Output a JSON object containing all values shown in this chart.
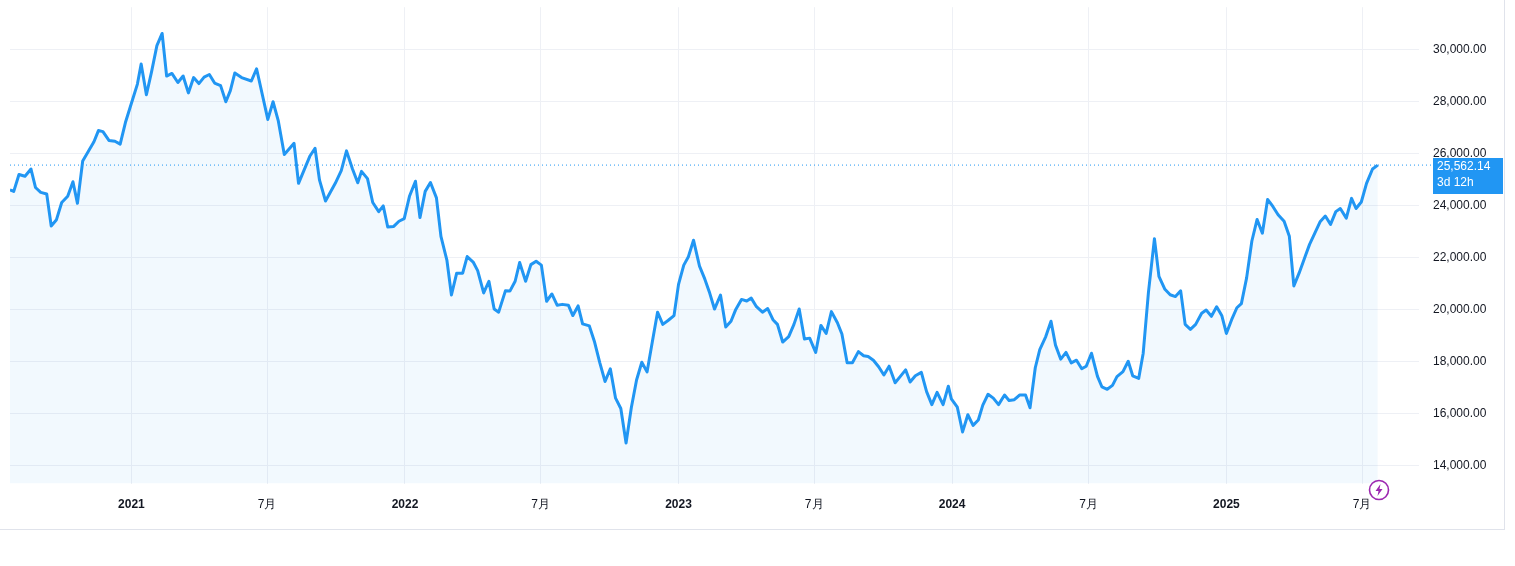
{
  "chart_data": {
    "type": "area",
    "x": [
      "2020-07-23",
      "2020-07-28",
      "2020-08-04",
      "2020-08-12",
      "2020-08-20",
      "2020-08-26",
      "2020-09-02",
      "2020-09-10",
      "2020-09-16",
      "2020-09-23",
      "2020-09-30",
      "2020-10-08",
      "2020-10-15",
      "2020-10-21",
      "2020-10-28",
      "2020-11-05",
      "2020-11-12",
      "2020-11-18",
      "2020-11-24",
      "2020-12-02",
      "2020-12-10",
      "2020-12-17",
      "2020-12-24",
      "2021-01-01",
      "2021-01-09",
      "2021-01-14",
      "2021-01-21",
      "2021-01-28",
      "2021-02-04",
      "2021-02-11",
      "2021-02-17",
      "2021-02-24",
      "2021-03-04",
      "2021-03-11",
      "2021-03-18",
      "2021-03-25",
      "2021-04-01",
      "2021-04-08",
      "2021-04-15",
      "2021-04-22",
      "2021-04-30",
      "2021-05-07",
      "2021-05-13",
      "2021-05-19",
      "2021-05-28",
      "2021-06-10",
      "2021-06-17",
      "2021-07-02",
      "2021-07-09",
      "2021-07-16",
      "2021-07-24",
      "2021-08-06",
      "2021-08-12",
      "2021-08-27",
      "2021-09-03",
      "2021-09-09",
      "2021-09-17",
      "2021-09-30",
      "2021-10-08",
      "2021-10-15",
      "2021-10-23",
      "2021-10-30",
      "2021-11-04",
      "2021-11-12",
      "2021-11-19",
      "2021-11-27",
      "2021-12-03",
      "2021-12-09",
      "2021-12-17",
      "2021-12-24",
      "2021-12-31",
      "2022-01-07",
      "2022-01-15",
      "2022-01-21",
      "2022-01-28",
      "2022-02-04",
      "2022-02-12",
      "2022-02-18",
      "2022-02-26",
      "2022-03-04",
      "2022-03-11",
      "2022-03-19",
      "2022-03-25",
      "2022-04-02",
      "2022-04-08",
      "2022-04-16",
      "2022-04-23",
      "2022-04-30",
      "2022-05-06",
      "2022-05-15",
      "2022-05-21",
      "2022-05-28",
      "2022-06-03",
      "2022-06-11",
      "2022-06-18",
      "2022-06-25",
      "2022-07-02",
      "2022-07-09",
      "2022-07-16",
      "2022-07-23",
      "2022-07-30",
      "2022-08-07",
      "2022-08-13",
      "2022-08-20",
      "2022-08-26",
      "2022-09-04",
      "2022-09-11",
      "2022-09-18",
      "2022-09-25",
      "2022-10-02",
      "2022-10-09",
      "2022-10-16",
      "2022-10-23",
      "2022-10-30",
      "2022-11-06",
      "2022-11-13",
      "2022-11-20",
      "2022-11-27",
      "2022-12-04",
      "2022-12-11",
      "2022-12-18",
      "2022-12-26",
      "2023-01-01",
      "2023-01-08",
      "2023-01-14",
      "2023-01-21",
      "2023-01-29",
      "2023-02-05",
      "2023-02-11",
      "2023-02-18",
      "2023-02-26",
      "2023-03-05",
      "2023-03-12",
      "2023-03-18",
      "2023-03-26",
      "2023-04-02",
      "2023-04-08",
      "2023-04-15",
      "2023-04-23",
      "2023-04-30",
      "2023-05-07",
      "2023-05-13",
      "2023-05-20",
      "2023-05-28",
      "2023-06-04",
      "2023-06-11",
      "2023-06-18",
      "2023-06-25",
      "2023-07-03",
      "2023-07-10",
      "2023-07-17",
      "2023-07-24",
      "2023-08-01",
      "2023-08-07",
      "2023-08-14",
      "2023-08-21",
      "2023-08-29",
      "2023-09-05",
      "2023-09-11",
      "2023-09-18",
      "2023-09-25",
      "2023-10-02",
      "2023-10-09",
      "2023-10-17",
      "2023-10-24",
      "2023-10-31",
      "2023-11-06",
      "2023-11-13",
      "2023-11-21",
      "2023-11-28",
      "2023-12-05",
      "2023-12-12",
      "2023-12-20",
      "2023-12-27",
      "2023-12-31",
      "2024-01-08",
      "2024-01-15",
      "2024-01-22",
      "2024-01-29",
      "2024-02-05",
      "2024-02-11",
      "2024-02-18",
      "2024-02-25",
      "2024-03-03",
      "2024-03-11",
      "2024-03-17",
      "2024-03-24",
      "2024-03-31",
      "2024-04-08",
      "2024-04-14",
      "2024-04-21",
      "2024-04-27",
      "2024-05-05",
      "2024-05-12",
      "2024-05-18",
      "2024-05-25",
      "2024-06-01",
      "2024-06-08",
      "2024-06-15",
      "2024-06-22",
      "2024-06-28",
      "2024-07-05",
      "2024-07-13",
      "2024-07-19",
      "2024-07-26",
      "2024-08-02",
      "2024-08-08",
      "2024-08-16",
      "2024-08-23",
      "2024-08-29",
      "2024-09-06",
      "2024-09-12",
      "2024-09-19",
      "2024-09-27",
      "2024-10-03",
      "2024-10-11",
      "2024-10-18",
      "2024-10-25",
      "2024-11-01",
      "2024-11-07",
      "2024-11-14",
      "2024-11-21",
      "2024-11-29",
      "2024-12-05",
      "2024-12-12",
      "2024-12-19",
      "2024-12-26",
      "2025-01-01",
      "2025-01-08",
      "2025-01-15",
      "2025-01-21",
      "2025-01-28",
      "2025-02-04",
      "2025-02-11",
      "2025-02-18",
      "2025-02-25",
      "2025-03-04",
      "2025-03-11",
      "2025-03-19",
      "2025-03-26",
      "2025-04-01",
      "2025-04-08",
      "2025-04-15",
      "2025-04-22",
      "2025-04-29",
      "2025-05-06",
      "2025-05-13",
      "2025-05-20",
      "2025-05-27",
      "2025-06-02",
      "2025-06-10",
      "2025-06-17",
      "2025-06-23",
      "2025-06-30",
      "2025-07-07",
      "2025-07-15",
      "2025-07-22"
    ],
    "series": [
      {
        "color": "#2196f3",
        "values": [
          24610,
          24550,
          25200,
          25130,
          25410,
          24700,
          24510,
          24450,
          23220,
          23460,
          24120,
          24360,
          24920,
          24090,
          25720,
          26110,
          26460,
          26890,
          26850,
          26510,
          26480,
          26370,
          27200,
          27940,
          28680,
          29450,
          28270,
          29170,
          30160,
          30630,
          28990,
          29090,
          28740,
          28990,
          28340,
          28930,
          28700,
          28950,
          29050,
          28720,
          28620,
          28000,
          28430,
          29110,
          28930,
          28800,
          29270,
          27320,
          28000,
          27260,
          25970,
          26400,
          24860,
          25900,
          26210,
          24980,
          24180,
          24860,
          25350,
          26110,
          25410,
          24880,
          25320,
          25040,
          24120,
          23770,
          23990,
          23180,
          23200,
          23400,
          23500,
          24360,
          24940,
          23540,
          24550,
          24890,
          24300,
          22820,
          21890,
          20560,
          21400,
          21400,
          22040,
          21830,
          21500,
          20640,
          21090,
          20020,
          19900,
          20720,
          20710,
          21090,
          21810,
          21090,
          21730,
          21860,
          21710,
          20320,
          20600,
          20170,
          20200,
          20170,
          19770,
          20140,
          19450,
          19370,
          18750,
          17950,
          17230,
          17720,
          16590,
          16190,
          14860,
          16220,
          17290,
          17970,
          17600,
          18750,
          19900,
          19430,
          19580,
          19770,
          20970,
          21710,
          22020,
          22670,
          21670,
          21180,
          20690,
          20020,
          20560,
          19330,
          19550,
          19980,
          20390,
          20330,
          20440,
          20110,
          19900,
          20040,
          19610,
          19430,
          18750,
          18960,
          19430,
          20020,
          18870,
          18900,
          18350,
          19390,
          19080,
          19920,
          19490,
          19060,
          17950,
          17950,
          18380,
          18220,
          18190,
          18050,
          17800,
          17480,
          17820,
          17180,
          17430,
          17680,
          17210,
          17450,
          17580,
          16840,
          16340,
          16810,
          16340,
          17050,
          16560,
          16240,
          15290,
          15950,
          15540,
          15750,
          16320,
          16740,
          16590,
          16340,
          16710,
          16500,
          16530,
          16710,
          16710,
          16220,
          17760,
          18460,
          18960,
          19550,
          18630,
          18090,
          18350,
          17950,
          18050,
          17720,
          17820,
          18320,
          17430,
          17020,
          16930,
          17080,
          17420,
          17610,
          18010,
          17450,
          17350,
          18320,
          20660,
          22730,
          21280,
          20780,
          20570,
          20500,
          20720,
          19430,
          19240,
          19430,
          19860,
          19980,
          19740,
          20110,
          19760,
          19080,
          19610,
          20070,
          20230,
          21220,
          22640,
          23470,
          22940,
          24240,
          23970,
          23650,
          23400,
          22820,
          20910,
          21400,
          21960,
          22510,
          22940,
          23380,
          23600,
          23280,
          23770,
          23890,
          23520,
          24280,
          23890,
          24140,
          24860,
          25410,
          25560
        ]
      }
    ],
    "xlim": [
      "2020-07-23",
      "2025-09-15"
    ],
    "xticks": [
      {
        "value": "2021-01-01",
        "label": "2021"
      },
      {
        "value": "2021-07-01",
        "label": "7月"
      },
      {
        "value": "2022-01-01",
        "label": "2022"
      },
      {
        "value": "2022-07-01",
        "label": "7月"
      },
      {
        "value": "2023-01-01",
        "label": "2023"
      },
      {
        "value": "2023-07-01",
        "label": "7月"
      },
      {
        "value": "2024-01-01",
        "label": "2024"
      },
      {
        "value": "2024-07-01",
        "label": "7月"
      },
      {
        "value": "2025-01-01",
        "label": "2025"
      },
      {
        "value": "2025-07-01",
        "label": "7月"
      }
    ],
    "ylim": [
      13300,
      31640
    ],
    "yticks": [
      {
        "value": 14000,
        "label": "14,000.00"
      },
      {
        "value": 16000,
        "label": "16,000.00"
      },
      {
        "value": 18000,
        "label": "18,000.00"
      },
      {
        "value": 20000,
        "label": "20,000.00"
      },
      {
        "value": 22000,
        "label": "22,000.00"
      },
      {
        "value": 24000,
        "label": "24,000.00"
      },
      {
        "value": 26000,
        "label": "26,000.00"
      },
      {
        "value": 28000,
        "label": "28,000.00"
      },
      {
        "value": 30000,
        "label": "30,000.00"
      }
    ],
    "grid": true,
    "ref_lines": [
      {
        "axis": "y",
        "value": 25562.14,
        "label": "25,562.14",
        "color": "#2196f3",
        "line_style": "dotted"
      }
    ],
    "annotations": [
      "3d 12h"
    ]
  }
}
